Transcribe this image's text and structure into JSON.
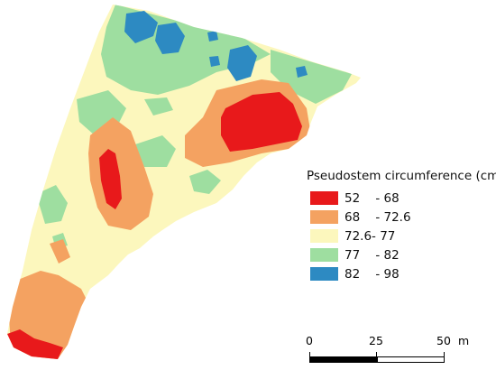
{
  "legend": {
    "title": "Pseudostem circumference (cm)",
    "classes": [
      {
        "label": "52    - 68",
        "color": "#e8191b"
      },
      {
        "label": "68    - 72.6",
        "color": "#f4a261"
      },
      {
        "label": "72.6- 77",
        "color": "#fcf7bd"
      },
      {
        "label": "77    - 82",
        "color": "#9edea0"
      },
      {
        "label": "82    - 98",
        "color": "#2d8ac2"
      }
    ]
  },
  "scale_bar": {
    "labels": [
      "0",
      "25",
      "50"
    ],
    "unit": "m"
  }
}
